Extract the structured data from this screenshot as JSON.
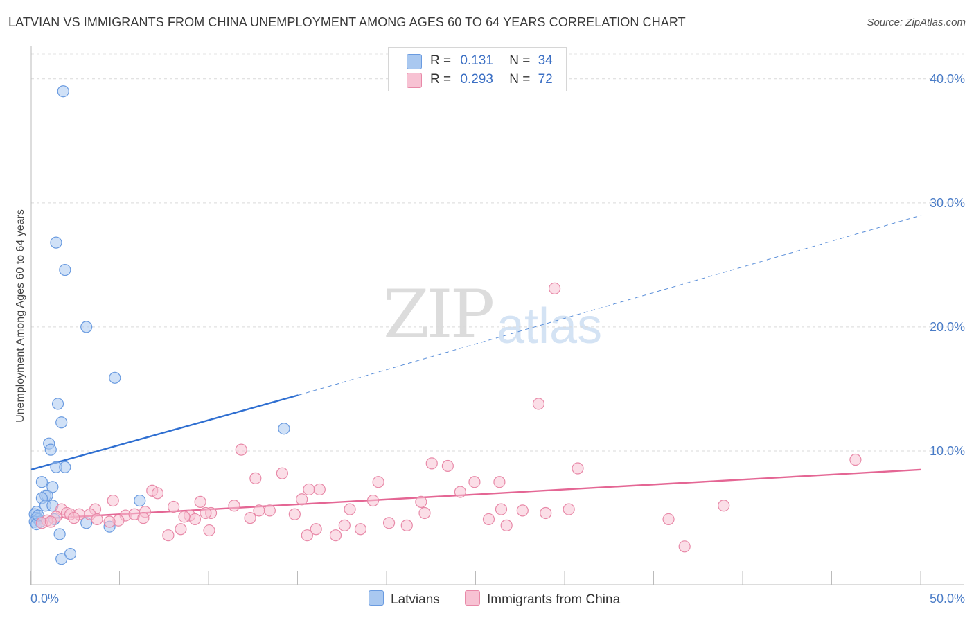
{
  "title": "LATVIAN VS IMMIGRANTS FROM CHINA UNEMPLOYMENT AMONG AGES 60 TO 64 YEARS CORRELATION CHART",
  "source": "Source: ZipAtlas.com",
  "watermark": {
    "zip": "ZIP",
    "atlas": "atlas"
  },
  "legend": {
    "rows": [
      {
        "r_label": "R =",
        "r_value": "0.131",
        "n_label": "N =",
        "n_value": "34",
        "color": "#a9c8f0",
        "border": "#6a9be0"
      },
      {
        "r_label": "R =",
        "r_value": "0.293",
        "n_label": "N =",
        "n_value": "72",
        "color": "#f7c2d3",
        "border": "#e889a8"
      }
    ]
  },
  "bottom_legend": [
    {
      "label": "Latvians",
      "color": "#a9c8f0",
      "border": "#6a9be0"
    },
    {
      "label": "Immigrants from China",
      "color": "#f7c2d3",
      "border": "#e889a8"
    }
  ],
  "chart_data": {
    "type": "scatter",
    "title": "LATVIAN VS IMMIGRANTS FROM CHINA UNEMPLOYMENT AMONG AGES 60 TO 64 YEARS CORRELATION CHART",
    "xlabel": "",
    "ylabel": "Unemployment Among Ages 60 to 64 years",
    "xlim": [
      0,
      50
    ],
    "ylim": [
      0,
      42
    ],
    "x_tick_labels": [
      "0.0%",
      "50.0%"
    ],
    "y_ticks": [
      10,
      20,
      30,
      40
    ],
    "y_tick_labels": [
      "10.0%",
      "20.0%",
      "30.0%",
      "40.0%"
    ],
    "grid": true,
    "series": [
      {
        "name": "Latvians",
        "color": "#6a9be0",
        "fill": "#a9c8f0",
        "points": [
          [
            1.8,
            39.0
          ],
          [
            1.4,
            26.8
          ],
          [
            1.9,
            24.6
          ],
          [
            3.1,
            20.0
          ],
          [
            4.7,
            15.9
          ],
          [
            1.5,
            13.8
          ],
          [
            1.7,
            12.3
          ],
          [
            14.2,
            11.8
          ],
          [
            1.0,
            10.6
          ],
          [
            1.1,
            10.1
          ],
          [
            1.4,
            8.7
          ],
          [
            1.9,
            8.7
          ],
          [
            0.6,
            7.5
          ],
          [
            1.2,
            7.1
          ],
          [
            0.8,
            6.4
          ],
          [
            0.9,
            6.4
          ],
          [
            0.6,
            6.2
          ],
          [
            6.1,
            6.0
          ],
          [
            0.8,
            5.6
          ],
          [
            1.2,
            5.6
          ],
          [
            0.3,
            5.1
          ],
          [
            0.2,
            4.9
          ],
          [
            0.3,
            4.6
          ],
          [
            0.4,
            4.5
          ],
          [
            1.3,
            4.5
          ],
          [
            0.2,
            4.3
          ],
          [
            0.5,
            4.3
          ],
          [
            3.1,
            4.2
          ],
          [
            0.3,
            4.1
          ],
          [
            4.4,
            3.9
          ],
          [
            1.6,
            3.3
          ],
          [
            2.2,
            1.7
          ],
          [
            1.7,
            1.3
          ],
          [
            0.4,
            4.8
          ]
        ],
        "trend": {
          "x": [
            0,
            15
          ],
          "y": [
            8.5,
            14.5
          ],
          "dashed_to": [
            50,
            29.0
          ]
        }
      },
      {
        "name": "Immigrants from China",
        "color": "#e889a8",
        "fill": "#f7c2d3",
        "points": [
          [
            29.4,
            23.1
          ],
          [
            28.5,
            13.8
          ],
          [
            11.8,
            10.1
          ],
          [
            46.3,
            9.3
          ],
          [
            22.5,
            9.0
          ],
          [
            23.4,
            8.8
          ],
          [
            30.7,
            8.6
          ],
          [
            14.1,
            8.2
          ],
          [
            12.6,
            7.8
          ],
          [
            19.5,
            7.5
          ],
          [
            24.9,
            7.5
          ],
          [
            26.3,
            7.5
          ],
          [
            15.6,
            6.9
          ],
          [
            16.2,
            6.9
          ],
          [
            6.8,
            6.8
          ],
          [
            7.1,
            6.6
          ],
          [
            24.1,
            6.7
          ],
          [
            15.2,
            6.1
          ],
          [
            4.6,
            6.0
          ],
          [
            9.5,
            5.9
          ],
          [
            19.2,
            6.0
          ],
          [
            21.9,
            5.9
          ],
          [
            8.0,
            5.5
          ],
          [
            11.4,
            5.6
          ],
          [
            12.8,
            5.2
          ],
          [
            3.6,
            5.3
          ],
          [
            6.4,
            5.1
          ],
          [
            10.1,
            5.0
          ],
          [
            17.9,
            5.3
          ],
          [
            26.4,
            5.3
          ],
          [
            27.6,
            5.2
          ],
          [
            30.2,
            5.3
          ],
          [
            38.9,
            5.6
          ],
          [
            1.7,
            5.3
          ],
          [
            2.0,
            5.0
          ],
          [
            2.2,
            4.9
          ],
          [
            2.7,
            4.9
          ],
          [
            3.3,
            4.9
          ],
          [
            5.3,
            4.8
          ],
          [
            5.8,
            4.9
          ],
          [
            8.9,
            4.8
          ],
          [
            9.8,
            5.0
          ],
          [
            13.4,
            5.2
          ],
          [
            14.8,
            4.9
          ],
          [
            22.1,
            5.0
          ],
          [
            28.9,
            5.0
          ],
          [
            1.4,
            4.7
          ],
          [
            2.4,
            4.6
          ],
          [
            3.7,
            4.5
          ],
          [
            4.9,
            4.4
          ],
          [
            6.3,
            4.6
          ],
          [
            8.6,
            4.7
          ],
          [
            9.2,
            4.5
          ],
          [
            12.3,
            4.6
          ],
          [
            0.9,
            4.4
          ],
          [
            0.6,
            4.2
          ],
          [
            1.1,
            4.3
          ],
          [
            4.4,
            4.3
          ],
          [
            17.6,
            4.0
          ],
          [
            20.1,
            4.2
          ],
          [
            21.1,
            4.0
          ],
          [
            25.7,
            4.5
          ],
          [
            26.7,
            4.0
          ],
          [
            35.8,
            4.5
          ],
          [
            36.7,
            2.3
          ],
          [
            8.4,
            3.7
          ],
          [
            10.0,
            3.6
          ],
          [
            16.0,
            3.7
          ],
          [
            18.5,
            3.7
          ],
          [
            7.7,
            3.2
          ],
          [
            15.5,
            3.2
          ],
          [
            17.1,
            3.2
          ]
        ],
        "trend": {
          "x": [
            0,
            50
          ],
          "y": [
            4.5,
            8.5
          ]
        }
      }
    ]
  }
}
